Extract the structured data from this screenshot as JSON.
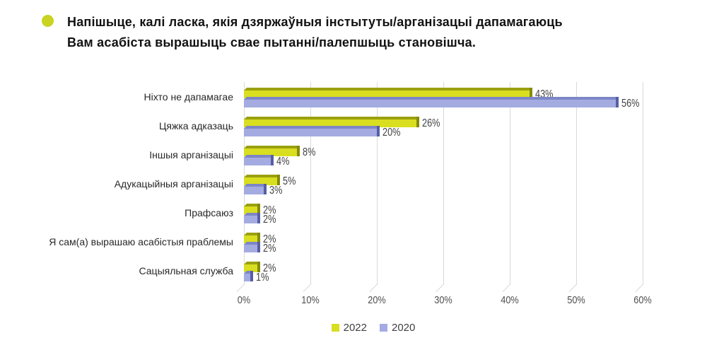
{
  "header": {
    "title_line1": "Напішыце, калі ласка, якія дзяржаўныя інстытуты/арганізацыі дапамагаюць",
    "title_line2": "Вам асабіста вырашыць свае пытанні/палепшыць становішча.",
    "bullet_color": "#c8d322"
  },
  "chart_data": {
    "type": "bar",
    "orientation": "horizontal",
    "title": "Напішыце, калі ласка, якія дзяржаўныя інстытуты/арганізацыі дапамагаюць Вам асабіста вырашыць свае пытанні/палепшыць становішча.",
    "categories": [
      "Ніхто не дапамагае",
      "Цяжка адказаць",
      "Іншыя арганізацыі",
      "Адукацыйныя арганізацыі",
      "Прафсаюз",
      "Я сам(а) вырашаю асабістыя праблемы",
      "Сацыяльная служба"
    ],
    "series": [
      {
        "name": "2022",
        "values": [
          43,
          26,
          8,
          5,
          2,
          2,
          2
        ],
        "color": "#d9de20",
        "color_top": "#9aa00e",
        "color_side": "#858b0a"
      },
      {
        "name": "2020",
        "values": [
          56,
          20,
          4,
          3,
          2,
          2,
          1
        ],
        "color": "#a4abe1",
        "color_top": "#7d86c6",
        "color_side": "#565fa4"
      }
    ],
    "value_suffix": "%",
    "x_ticks": [
      "0%",
      "10%",
      "20%",
      "30%",
      "40%",
      "50%",
      "60%"
    ],
    "xlim": [
      0,
      60
    ],
    "xlabel": "",
    "ylabel": "",
    "grid": true,
    "legend_position": "bottom"
  },
  "styles": {
    "grid_color": "#d9d9d9",
    "value_label_color": "#414141",
    "category_label_color": "#282828",
    "tick_label_color": "#4f4f4f",
    "title_color": "#121212",
    "background": "#ffffff"
  }
}
